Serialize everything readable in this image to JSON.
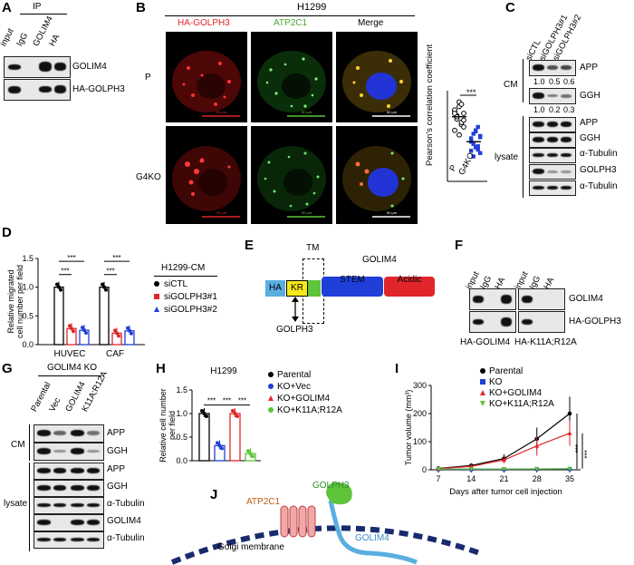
{
  "panelA": {
    "letter": "A",
    "ip": "IP",
    "lanes": [
      "input",
      "IgG",
      "GOLIM4",
      "HA"
    ],
    "rows": [
      "GOLIM4",
      "HA-GOLPH3"
    ]
  },
  "panelB": {
    "letter": "B",
    "cell": "H1299",
    "channels": [
      "HA-GOLPH3",
      "ATP2C1",
      "Merge"
    ],
    "rows": [
      "P",
      "G4KO"
    ],
    "scale": "50 μm",
    "chart": {
      "ylabel": "Pearson's correlation coefficient",
      "sig": "***",
      "groups": [
        "P",
        "G4KO"
      ]
    }
  },
  "panelC": {
    "letter": "C",
    "lanes": [
      "siCTL",
      "siGOLPH3#1",
      "siGOLPH3#2"
    ],
    "cm": "CM",
    "lysate": "lysate",
    "cmRows": [
      "APP",
      "GGH"
    ],
    "cmValsAPP": [
      "1.0",
      "0.5",
      "0.6"
    ],
    "cmValsGGH": [
      "1.0",
      "0.2",
      "0.3"
    ],
    "lysRows": [
      "APP",
      "GGH",
      "α-Tubulin",
      "GOLPH3",
      "α-Tubulin"
    ]
  },
  "panelD": {
    "letter": "D",
    "legendTitle": "H1299-CM",
    "legend": [
      "siCTL",
      "siGOLPH3#1",
      "siGOLPH3#2"
    ]
  },
  "panelE": {
    "letter": "E",
    "title": "GOLIM4",
    "tm": "TM",
    "domains": [
      "HA",
      "KR",
      "STEM",
      "Acidic"
    ],
    "binder": "GOLPH3"
  },
  "panelF": {
    "letter": "F",
    "lanes": [
      "input",
      "IgG",
      "HA",
      "input",
      "IgG",
      "HA"
    ],
    "rows": [
      "GOLIM4",
      "HA-GOLPH3"
    ],
    "captions": [
      "HA-GOLIM4",
      "HA-K11A;R12A"
    ]
  },
  "panelG": {
    "letter": "G",
    "header": "GOLIM4 KO",
    "lanes": [
      "Parental",
      "Vec",
      "GOLIM4",
      "K11A;R12A"
    ],
    "cm": "CM",
    "lysate": "lysate",
    "cmRows": [
      "APP",
      "GGH"
    ],
    "lysRows": [
      "APP",
      "GGH",
      "α-Tubulin",
      "GOLIM4",
      "α-Tubulin"
    ]
  },
  "panelH": {
    "letter": "H",
    "legend": [
      "Parental",
      "KO+Vec",
      "KO+GOLIM4",
      "KO+K11A;R12A"
    ]
  },
  "panelI": {
    "letter": "I",
    "legend": [
      "Parental",
      "KO",
      "KO+GOLIM4",
      "KO+K11A;R12A"
    ]
  },
  "panelJ": {
    "letter": "J",
    "labels": [
      "ATP2C1",
      "GOLPH3",
      "GOLIM4",
      "Golgi membrane"
    ]
  },
  "colors": {
    "black": "#000000",
    "red": "#e0262a",
    "blue": "#1f3fd8",
    "green": "#5ec43a",
    "cyan": "#5aaee0"
  },
  "chart_data": [
    {
      "type": "scatter",
      "panel": "B",
      "groups": [
        "P",
        "G4KO"
      ],
      "ylabel": "Pearson's correlation coefficient",
      "yticks": [],
      "P": [
        0.62,
        0.55,
        0.7,
        0.5,
        0.6,
        0.45,
        0.58,
        0.66,
        0.52,
        0.48,
        0.63,
        0.57,
        0.41,
        0.68,
        0.54,
        0.6
      ],
      "G4KO": [
        0.35,
        0.42,
        0.3,
        0.48,
        0.25,
        0.38,
        0.33,
        0.45,
        0.28,
        0.4,
        0.36,
        0.22,
        0.44,
        0.31,
        0.39,
        0.27
      ]
    },
    {
      "type": "bar",
      "panel": "D",
      "categories": [
        "HUVEC",
        "CAF"
      ],
      "ylabel": "Relative migrated cell number per field",
      "ylim": [
        0,
        1.5
      ],
      "yticks": [
        0.0,
        0.5,
        1.0,
        1.5
      ],
      "series": [
        {
          "name": "siCTL",
          "values": [
            1.0,
            1.0
          ]
        },
        {
          "name": "siGOLPH3#1",
          "values": [
            0.28,
            0.2
          ]
        },
        {
          "name": "siGOLPH3#2",
          "values": [
            0.25,
            0.24
          ]
        }
      ],
      "sig": [
        "***",
        "***",
        "***",
        "***"
      ]
    },
    {
      "type": "bar",
      "panel": "H",
      "title": "H1299",
      "ylabel": "Relative cell number per field",
      "categories": [
        "Parental",
        "KO+Vec",
        "KO+GOLIM4",
        "KO+K11A;R12A"
      ],
      "values": [
        1.0,
        0.32,
        1.0,
        0.15
      ],
      "ylim": [
        0,
        1.5
      ],
      "yticks": [
        0.0,
        0.5,
        1.0,
        1.5
      ],
      "sig": [
        "***",
        "***",
        "***"
      ]
    },
    {
      "type": "line",
      "panel": "I",
      "xlabel": "Days after tumor cell injection",
      "ylabel": "Tumor volume (mm³)",
      "x": [
        7,
        14,
        21,
        28,
        35
      ],
      "ylim": [
        0,
        300
      ],
      "yticks": [
        0,
        100,
        200,
        300
      ],
      "sig": [
        "***",
        "***"
      ],
      "series": [
        {
          "name": "Parental",
          "values": [
            5,
            15,
            40,
            110,
            200
          ]
        },
        {
          "name": "KO",
          "values": [
            2,
            2,
            2,
            3,
            3
          ]
        },
        {
          "name": "KO+GOLIM4",
          "values": [
            4,
            12,
            35,
            85,
            130
          ]
        },
        {
          "name": "KO+K11A;R12A",
          "values": [
            3,
            3,
            3,
            3,
            4
          ]
        }
      ]
    }
  ]
}
